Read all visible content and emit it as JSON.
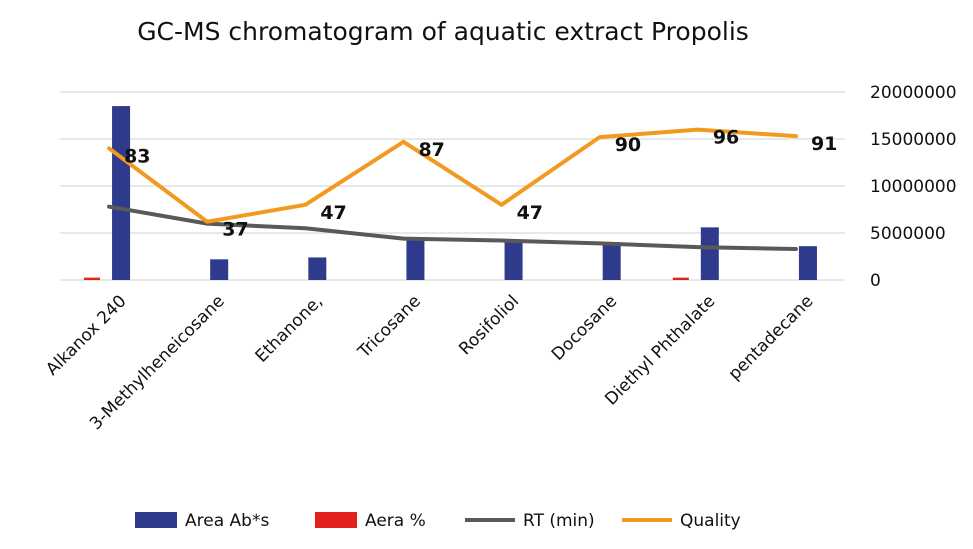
{
  "chart_data": {
    "type": "bar",
    "title": "GC-MS chromatogram of aquatic extract Propolis",
    "categories": [
      "Alkanox 240",
      "3-Methylheneicosane",
      "Ethanone,",
      "Tricosane",
      "Rosifoliol",
      "Docosane",
      "Diethyl Phthalate",
      "pentadecane"
    ],
    "y_right": {
      "min": 0,
      "max": 20000000,
      "ticks": [
        0,
        5000000,
        10000000,
        15000000,
        20000000
      ],
      "tick_labels": [
        "0",
        "5000000",
        "10000000",
        "15000000",
        "20000000"
      ]
    },
    "series": [
      {
        "name": "Area Ab*s",
        "kind": "bar",
        "color": "#2e3a8c",
        "values": [
          18500000,
          2200000,
          2400000,
          4200000,
          4100000,
          4000000,
          5600000,
          3600000
        ]
      },
      {
        "name": "Aera %",
        "kind": "bar",
        "color": "#e3211c",
        "values": [
          250000,
          0,
          0,
          0,
          0,
          0,
          250000,
          0
        ]
      },
      {
        "name": "RT (min)",
        "kind": "line",
        "color": "#595959",
        "values": [
          7800000,
          6000000,
          5500000,
          4400000,
          4200000,
          3900000,
          3500000,
          3300000
        ]
      },
      {
        "name": "Quality",
        "kind": "line",
        "color": "#f29a1f",
        "labels": [
          83,
          37,
          47,
          87,
          47,
          90,
          96,
          91
        ],
        "values": [
          14000000,
          6200000,
          8000000,
          14700000,
          8000000,
          15200000,
          16000000,
          15300000
        ]
      }
    ],
    "legend_position": "bottom"
  }
}
